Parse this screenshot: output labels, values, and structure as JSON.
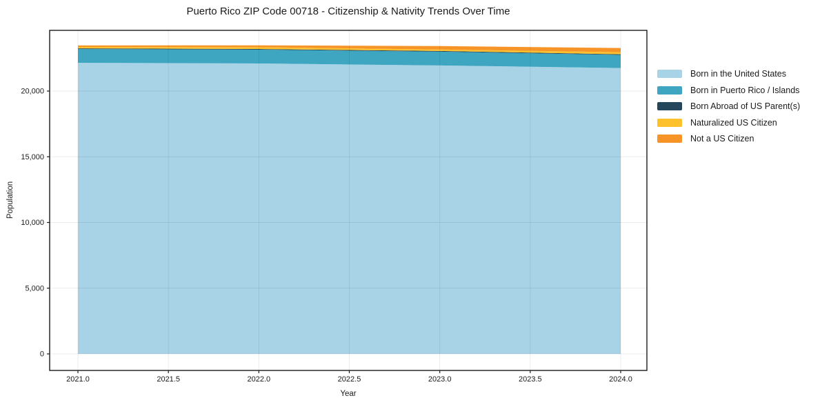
{
  "chart_data": {
    "type": "area",
    "stacked": true,
    "title": "Puerto Rico ZIP Code 00718 - Citizenship & Nativity Trends Over Time",
    "xlabel": "Year",
    "ylabel": "Population",
    "x": [
      2021,
      2022,
      2023,
      2024
    ],
    "series": [
      {
        "name": "Born in the United States",
        "color": "#a8d3e7",
        "values": [
          22150,
          22100,
          21950,
          21750
        ]
      },
      {
        "name": "Born in Puerto Rico / Islands",
        "color": "#3ea6c1",
        "values": [
          1050,
          1050,
          1050,
          1000
        ]
      },
      {
        "name": "Born Abroad of US Parent(s)",
        "color": "#24475c",
        "values": [
          50,
          50,
          50,
          50
        ]
      },
      {
        "name": "Naturalized US Citizen",
        "color": "#fcc12c",
        "values": [
          110,
          140,
          110,
          160
        ]
      },
      {
        "name": "Not a US Citizen",
        "color": "#f79428",
        "values": [
          110,
          140,
          265,
          315
        ]
      }
    ],
    "xticks": [
      2021.0,
      2021.5,
      2022.0,
      2022.5,
      2023.0,
      2023.5,
      2024.0
    ],
    "xtick_labels": [
      "2021.0",
      "2021.5",
      "2022.0",
      "2022.5",
      "2023.0",
      "2023.5",
      "2024.0"
    ],
    "yticks": [
      0,
      5000,
      10000,
      15000,
      20000
    ],
    "ytick_labels": [
      "0",
      "5,000",
      "10,000",
      "15,000",
      "20,000"
    ],
    "xlim": [
      2020.84,
      2024.15
    ],
    "ylim": [
      -1260,
      24620
    ],
    "grid": true,
    "legend_position": "upper-right-outside",
    "frame_color": "#1a1a1a",
    "grid_color_alpha": "rgba(0,0,0,0.08)"
  }
}
